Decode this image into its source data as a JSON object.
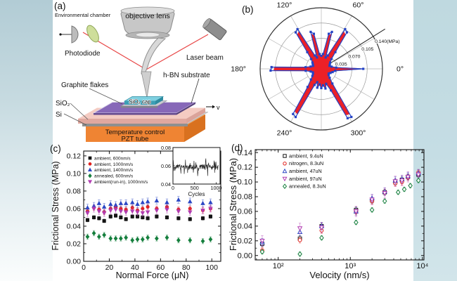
{
  "panels": {
    "a": "(a)",
    "b": "(b)",
    "c": "(c)",
    "d": "(d)"
  },
  "diagram": {
    "labels": {
      "environmental_chamber": "Environmental chamber",
      "objective_lens": "objective lens",
      "photodiode": "Photodiode",
      "laser_beam": "Laser beam",
      "hbn_substrate": "h-BN substrate",
      "graphite_flakes": "Graphite flakes",
      "sio2": "SiO₂",
      "si": "Si",
      "sio2_cap": "SiO₂ cap",
      "temp_control_line1": "Temperature control",
      "temp_control_line2": "PZT tube",
      "velocity": "v"
    },
    "colors": {
      "pzt_front": "#ef8433",
      "pzt_top": "#f6a55f",
      "pzt_side": "#d9711f",
      "sio2_pink_top": "#f4cbc2",
      "sio2_pink_front": "#e0a89f",
      "sio2_pink_side": "#dba39a",
      "si_top": "#cdcdcd",
      "si_front": "#8f8f8f",
      "hbn_top": "#8768b8",
      "hbn_front": "#64498f",
      "hbn_side": "#55407a",
      "flake_top": "#c9cad2",
      "flake_front": "#83848c",
      "cap_top": "#7ed0e0",
      "cap_front": "#3c9fb5",
      "cap_side": "#2e8ba0",
      "lens_grey": "#c7c7c7",
      "laser_body": "#8e8e8e",
      "beam_red": "#e84545",
      "photodiode_grey": "#bcbcbc",
      "lens_green": "#cede9b"
    }
  },
  "chart_data": [
    {
      "panel": "b",
      "type": "line",
      "subtype": "polar",
      "rmax": 0.148,
      "r_ticks": [
        0.035,
        0.07,
        0.105,
        0.14
      ],
      "r_tick_labels": [
        "0.035",
        "0.070",
        "0.105",
        "0.140(MPa)"
      ],
      "r_axis_angle_deg": 32,
      "angle_ticks_deg": [
        0,
        60,
        120,
        180,
        240,
        300
      ],
      "angle_tick_labels": [
        "0°",
        "60°",
        "120°",
        "180°",
        "240°",
        "300°"
      ],
      "grid": true,
      "series": [
        {
          "name": "frictional-stress-vs-angle-data",
          "color": "#2443c5",
          "marker": "square",
          "points": [
            [
              0,
              0.096
            ],
            [
              5,
              0.034
            ],
            [
              12,
              0.024
            ],
            [
              20,
              0.02
            ],
            [
              28,
              0.022
            ],
            [
              36,
              0.025
            ],
            [
              44,
              0.032
            ],
            [
              50,
              0.05
            ],
            [
              55,
              0.102
            ],
            [
              59,
              0.106
            ],
            [
              64,
              0.034
            ],
            [
              69,
              0.028
            ],
            [
              74,
              0.088
            ],
            [
              78,
              0.082
            ],
            [
              83,
              0.034
            ],
            [
              90,
              0.03
            ],
            [
              97,
              0.034
            ],
            [
              102,
              0.082
            ],
            [
              106,
              0.088
            ],
            [
              111,
              0.028
            ],
            [
              116,
              0.034
            ],
            [
              121,
              0.106
            ],
            [
              125,
              0.102
            ],
            [
              130,
              0.05
            ],
            [
              136,
              0.032
            ],
            [
              144,
              0.025
            ],
            [
              152,
              0.022
            ],
            [
              160,
              0.02
            ],
            [
              168,
              0.025
            ],
            [
              174,
              0.036
            ],
            [
              178,
              0.114
            ],
            [
              182,
              0.116
            ],
            [
              187,
              0.036
            ],
            [
              194,
              0.025
            ],
            [
              202,
              0.021
            ],
            [
              210,
              0.022
            ],
            [
              218,
              0.026
            ],
            [
              226,
              0.034
            ],
            [
              233,
              0.052
            ],
            [
              238,
              0.122
            ],
            [
              242,
              0.125
            ],
            [
              247,
              0.04
            ],
            [
              253,
              0.032
            ],
            [
              258,
              0.044
            ],
            [
              264,
              0.036
            ],
            [
              270,
              0.044
            ],
            [
              276,
              0.038
            ],
            [
              282,
              0.046
            ],
            [
              288,
              0.036
            ],
            [
              294,
              0.054
            ],
            [
              298,
              0.128
            ],
            [
              302,
              0.13
            ],
            [
              307,
              0.042
            ],
            [
              313,
              0.028
            ],
            [
              320,
              0.022
            ],
            [
              328,
              0.02
            ],
            [
              336,
              0.023
            ],
            [
              344,
              0.027
            ],
            [
              352,
              0.032
            ]
          ]
        },
        {
          "name": "frictional-stress-starburst",
          "color": "#ec2027",
          "r_scale": 0.93
        }
      ]
    },
    {
      "panel": "c",
      "type": "scatter",
      "xlabel": "Normal Force (μN)",
      "ylabel": "Frictional Stress (MPa)",
      "xlim": [
        0,
        107
      ],
      "ylim": [
        0,
        0.1255
      ],
      "xticks": [
        0,
        20,
        40,
        60,
        80,
        100
      ],
      "xtick_labels": [
        "0",
        "20",
        "40",
        "60",
        "80",
        "100"
      ],
      "xminor": [
        10,
        30,
        50,
        70,
        90
      ],
      "yticks": [
        0,
        0.02,
        0.04,
        0.06,
        0.08,
        0.1,
        0.12
      ],
      "ytick_labels": [
        "0.00",
        "0.02",
        "0.04",
        "0.06",
        "0.08",
        "0.10",
        "0.12"
      ],
      "x": [
        3,
        8,
        12,
        16,
        21,
        25,
        29,
        33,
        38,
        42,
        46,
        50,
        57,
        65,
        74,
        83,
        93,
        99
      ],
      "series": [
        {
          "label": "ambient, 600nm/s",
          "color": "#141414",
          "marker": "square",
          "err": 0.002,
          "y": [
            0.047,
            0.05,
            0.049,
            0.046,
            0.051,
            0.052,
            0.05,
            0.048,
            0.051,
            0.051,
            0.05,
            0.049,
            0.051,
            0.05,
            0.049,
            0.048,
            0.049,
            0.051
          ]
        },
        {
          "label": "ambient, 1000nm/s",
          "color": "#e2211c",
          "marker": "circle",
          "err": 0.003,
          "y": [
            0.057,
            0.061,
            0.059,
            0.056,
            0.06,
            0.062,
            0.06,
            0.059,
            0.061,
            0.058,
            0.06,
            0.062,
            0.06,
            0.062,
            0.059,
            0.06,
            0.058,
            0.06
          ]
        },
        {
          "label": "ambient, 1400nm/s",
          "color": "#2b47c4",
          "marker": "triangle-up",
          "err": 0.004,
          "y": [
            0.061,
            0.063,
            0.066,
            0.062,
            0.065,
            0.064,
            0.066,
            0.066,
            0.067,
            0.065,
            0.067,
            0.068,
            0.069,
            0.067,
            0.07,
            0.068,
            0.066,
            0.067
          ]
        },
        {
          "label": "annealed, 600nm/s",
          "color": "#157f3d",
          "marker": "diamond",
          "err": 0.003,
          "y": [
            0.028,
            0.032,
            0.028,
            0.03,
            0.026,
            0.026,
            0.026,
            0.027,
            0.024,
            0.025,
            0.025,
            0.027,
            0.026,
            0.027,
            0.024,
            0.024,
            0.023,
            0.025
          ]
        },
        {
          "label": "ambient(run-in), 1000nm/s",
          "color": "#b13cb1",
          "marker": "triangle-down",
          "err": 0.004,
          "y": [
            0.055,
            0.06,
            0.057,
            0.055,
            0.058,
            0.059,
            0.057,
            0.056,
            0.057,
            0.056,
            0.055,
            0.056,
            0.058,
            0.059,
            0.057,
            0.056,
            0.058,
            0.06
          ]
        }
      ],
      "inset": {
        "xlabel": "Cycles",
        "xlim": [
          0,
          1090
        ],
        "ylim": [
          0.04,
          0.08
        ],
        "xticks": [
          0,
          500,
          1000
        ],
        "xtick_labels": [
          "0",
          "500",
          "1000"
        ],
        "yticks": [
          0.08,
          0.06,
          0.04
        ],
        "ytick_labels": [
          "0.08",
          "0.06",
          "0.04"
        ],
        "trace_mean": 0.0585,
        "trace_noise": 0.006,
        "trace_spike": 0.02,
        "n_points": 150
      }
    },
    {
      "panel": "d",
      "type": "scatter",
      "xscale": "log",
      "xlabel": "Velocity (nm/s)",
      "ylabel": "Frictional Stress (MPa)",
      "xlim": [
        48,
        10500
      ],
      "ylim": [
        -0.006,
        0.144
      ],
      "xticks": [
        100,
        1000,
        10000
      ],
      "xtick_labels": [
        "10²",
        "10³",
        "10⁴"
      ],
      "yticks": [
        0,
        0.02,
        0.04,
        0.06,
        0.08,
        0.1,
        0.12,
        0.14
      ],
      "ytick_labels": [
        "0.00",
        "0.02",
        "0.04",
        "0.06",
        "0.08",
        "0.10",
        "0.12",
        "0.14"
      ],
      "x": [
        60,
        200,
        400,
        1200,
        2000,
        3000,
        4200,
        5200,
        6300,
        8800
      ],
      "series": [
        {
          "label": "ambient, 9.4uN",
          "color": "#141414",
          "marker": "square",
          "open": true,
          "err": 0.004,
          "y": [
            0.016,
            0.023,
            0.04,
            0.062,
            0.075,
            0.086,
            0.1,
            0.103,
            0.107,
            0.11
          ]
        },
        {
          "label": "nitrogen, 8.3uN",
          "color": "#e2211c",
          "marker": "circle",
          "open": true,
          "err": 0.004,
          "y": [
            0.007,
            0.021,
            0.034,
            0.059,
            0.074,
            0.086,
            0.098,
            0.1,
            0.106,
            0.113
          ]
        },
        {
          "label": "ambient, 47uN",
          "color": "#2b47c4",
          "marker": "triangle-up",
          "open": true,
          "err": 0.005,
          "y": [
            0.018,
            0.032,
            0.04,
            0.06,
            0.078,
            0.087,
            0.102,
            0.104,
            0.108,
            0.112
          ]
        },
        {
          "label": "ambient, 97uN",
          "color": "#b13cb1",
          "marker": "triangle-down",
          "open": true,
          "err": 0.007,
          "y": [
            0.02,
            0.037,
            0.038,
            0.06,
            0.076,
            0.085,
            0.101,
            0.102,
            0.107,
            0.11
          ]
        },
        {
          "label": "annealed, 8.3uN",
          "color": "#157f3d",
          "marker": "diamond",
          "open": true,
          "err": 0.003,
          "x": [
            60,
            200,
            400,
            1200,
            2000,
            3000,
            4600,
            5600,
            6800,
            8800
          ],
          "y": [
            0.005,
            0.002,
            0.024,
            0.045,
            0.062,
            0.074,
            0.086,
            0.09,
            0.095,
            0.102
          ]
        }
      ]
    }
  ]
}
